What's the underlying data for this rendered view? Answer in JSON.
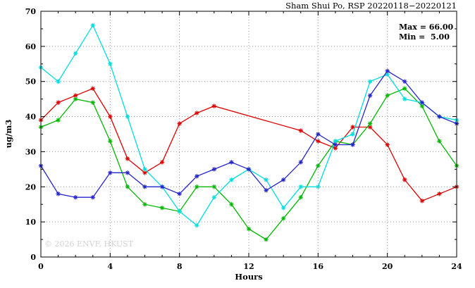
{
  "chart_data": {
    "type": "line",
    "title": "Sham Shui Po, RSP 20220118−20220121",
    "xlabel": "Hours",
    "ylabel": "ug/m3",
    "xlim": [
      0,
      24
    ],
    "ylim": [
      0,
      70
    ],
    "xticks": [
      0,
      4,
      8,
      12,
      16,
      20,
      24
    ],
    "yticks": [
      0,
      10,
      20,
      30,
      40,
      50,
      60,
      70
    ],
    "grid": true,
    "legend": "none",
    "annotations": [
      "Max = 66.00",
      "Min =  5.00"
    ],
    "watermark": "© 2026 ENVF, HKUST",
    "x": [
      0,
      1,
      2,
      3,
      4,
      5,
      6,
      7,
      8,
      9,
      10,
      11,
      12,
      13,
      14,
      15,
      16,
      17,
      18,
      19,
      20,
      21,
      22,
      23,
      24
    ],
    "series": [
      {
        "name": "red",
        "color": "#e00000",
        "values": [
          39,
          44,
          46,
          48,
          40,
          28,
          24,
          27,
          38,
          41,
          43,
          null,
          null,
          null,
          null,
          36,
          33,
          31,
          37,
          37,
          32,
          22,
          16,
          18,
          20
        ]
      },
      {
        "name": "green",
        "color": "#00b800",
        "values": [
          37,
          39,
          45,
          44,
          33,
          20,
          15,
          14,
          13,
          20,
          20,
          15,
          8,
          5,
          11,
          17,
          26,
          33,
          32,
          38,
          46,
          48,
          43,
          33,
          26
        ]
      },
      {
        "name": "cyan",
        "color": "#00dddd",
        "values": [
          54,
          50,
          58,
          66,
          55,
          40,
          25,
          20,
          13,
          9,
          17,
          22,
          25,
          22,
          14,
          20,
          20,
          33,
          35,
          50,
          52,
          45,
          44,
          40,
          39
        ]
      },
      {
        "name": "blue",
        "color": "#2424cc",
        "values": [
          26,
          18,
          17,
          17,
          24,
          24,
          20,
          20,
          18,
          23,
          25,
          27,
          25,
          19,
          22,
          27,
          35,
          32,
          32,
          46,
          53,
          50,
          44,
          40,
          38
        ]
      }
    ]
  }
}
